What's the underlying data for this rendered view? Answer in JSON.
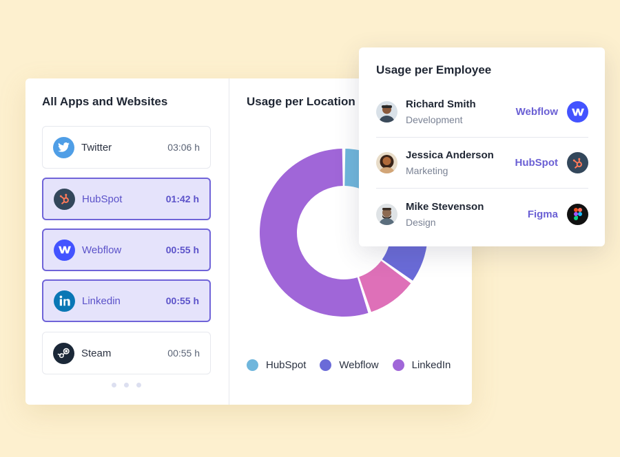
{
  "apps_panel": {
    "title": "All Apps and Websites",
    "items": [
      {
        "label": "Twitter",
        "time": "03:06 h",
        "icon": "twitter-icon",
        "active": false
      },
      {
        "label": "HubSpot",
        "time": "01:42 h",
        "icon": "hubspot-icon",
        "active": true
      },
      {
        "label": "Webflow",
        "time": "00:55 h",
        "icon": "webflow-icon",
        "active": true
      },
      {
        "label": "Linkedin",
        "time": "00:55 h",
        "icon": "linkedin-icon",
        "active": true
      },
      {
        "label": "Steam",
        "time": "00:55 h",
        "icon": "steam-icon",
        "active": false
      }
    ]
  },
  "location_panel": {
    "title": "Usage per Location",
    "legend": [
      {
        "label": "HubSpot",
        "color": "#6fb6dc"
      },
      {
        "label": "Webflow",
        "color": "#6a6bd8"
      },
      {
        "label": "LinkedIn",
        "color": "#a066d8"
      }
    ]
  },
  "chart_data": {
    "type": "pie",
    "donut": true,
    "slices": [
      {
        "name": "segment-1",
        "value": 24,
        "color": "#6fb6dc"
      },
      {
        "name": "segment-2",
        "value": 11,
        "color": "#6a6bd8"
      },
      {
        "name": "segment-3",
        "value": 10,
        "color": "#de70b8"
      },
      {
        "name": "segment-4",
        "value": 55,
        "color": "#a066d8"
      }
    ]
  },
  "employee_panel": {
    "title": "Usage per Employee",
    "rows": [
      {
        "name": "Richard Smith",
        "dept": "Development",
        "app": "Webflow",
        "app_icon": "webflow-icon",
        "avatar_color": "#8a5a3c"
      },
      {
        "name": "Jessica Anderson",
        "dept": "Marketing",
        "app": "HubSpot",
        "app_icon": "hubspot-icon",
        "avatar_color": "#b06a3a"
      },
      {
        "name": "Mike Stevenson",
        "dept": "Design",
        "app": "Figma",
        "app_icon": "figma-icon",
        "avatar_color": "#6b5a4a"
      }
    ]
  },
  "colors": {
    "background": "#fdf0cf",
    "accent": "#6a5fd4",
    "active_item_bg": "#e5e3fb"
  }
}
